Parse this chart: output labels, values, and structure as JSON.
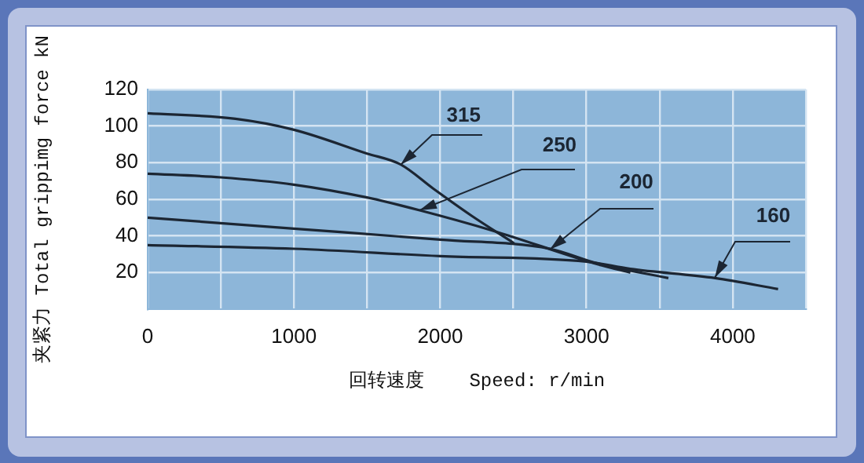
{
  "chart_data": {
    "type": "line",
    "xlabel": "回转速度    Speed: r/min",
    "ylabel": "夹紧力 Total grippimg force kN",
    "xlim": [
      0,
      4500
    ],
    "ylim": [
      0,
      120
    ],
    "xticks": [
      0,
      {
        "value": 500,
        "label": null
      },
      1000,
      {
        "value": 1500,
        "label": null
      },
      2000,
      {
        "value": 2500,
        "label": null
      },
      3000,
      {
        "value": 3500,
        "label": null
      },
      4000,
      {
        "value": 4500,
        "label": null
      }
    ],
    "yticks": [
      20,
      40,
      60,
      80,
      100,
      120
    ],
    "grid": true,
    "series": [
      {
        "name": "315",
        "color": "#1c2633",
        "x": [
          0,
          600,
          1000,
          1500,
          1730,
          1950,
          2215,
          2505
        ],
        "values": [
          107,
          104,
          98,
          85,
          79,
          66,
          51,
          36
        ]
      },
      {
        "name": "250",
        "color": "#1c2633",
        "x": [
          0,
          500,
          1000,
          1500,
          1860,
          2355,
          3100,
          3300
        ],
        "values": [
          74,
          72,
          68,
          61,
          54,
          43,
          24,
          20
        ]
      },
      {
        "name": "200",
        "color": "#1c2633",
        "x": [
          0,
          1000,
          2000,
          2750,
          3075,
          3560
        ],
        "values": [
          50,
          44,
          38,
          33,
          25,
          17
        ]
      },
      {
        "name": "160",
        "color": "#1c2633",
        "x": [
          0,
          1000,
          2000,
          3000,
          3300,
          3880,
          4310
        ],
        "values": [
          35,
          33,
          29,
          26,
          22,
          17,
          11
        ]
      }
    ]
  }
}
